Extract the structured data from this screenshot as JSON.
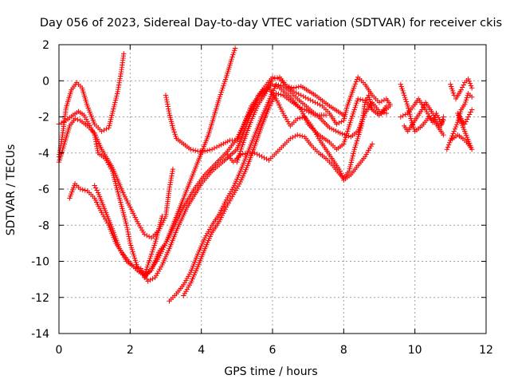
{
  "chart_data": {
    "type": "scatter",
    "title": "Day 056 of 2023, Sidereal Day-to-day VTEC variation (SDTVAR) for receiver ckis",
    "xlabel": "GPS time / hours",
    "ylabel": "SDTVAR / TECUs",
    "xlim": [
      0,
      12
    ],
    "ylim": [
      -14,
      2
    ],
    "xticks": [
      0,
      2,
      4,
      6,
      8,
      10,
      12
    ],
    "yticks": [
      -14,
      -12,
      -10,
      -8,
      -6,
      -4,
      -2,
      0,
      2
    ],
    "grid": true,
    "marker": "+",
    "color": "#ff0000",
    "series": [
      {
        "points": [
          [
            0,
            -4.5
          ],
          [
            0.15,
            -3.5
          ],
          [
            0.3,
            -2.5
          ],
          [
            0.45,
            -2.1
          ],
          [
            0.6,
            -2.2
          ],
          [
            0.8,
            -2.5
          ],
          [
            1.0,
            -2.9
          ],
          [
            1.2,
            -3.8
          ],
          [
            1.5,
            -4.8
          ],
          [
            1.8,
            -6.2
          ],
          [
            2.0,
            -7.0
          ],
          [
            2.2,
            -7.8
          ],
          [
            2.4,
            -8.5
          ],
          [
            2.6,
            -8.7
          ],
          [
            2.8,
            -8.3
          ],
          [
            3.0,
            -7.5
          ],
          [
            3.1,
            -6.0
          ],
          [
            3.2,
            -4.9
          ]
        ]
      },
      {
        "points": [
          [
            0,
            -4.2
          ],
          [
            0.1,
            -3.0
          ],
          [
            0.2,
            -1.5
          ],
          [
            0.35,
            -0.5
          ],
          [
            0.5,
            -0.1
          ],
          [
            0.65,
            -0.4
          ],
          [
            0.8,
            -1.4
          ],
          [
            1.0,
            -2.4
          ],
          [
            1.2,
            -2.8
          ],
          [
            1.4,
            -2.6
          ],
          [
            1.5,
            -1.8
          ],
          [
            1.65,
            -0.6
          ],
          [
            1.75,
            0.5
          ],
          [
            1.82,
            1.5
          ]
        ]
      },
      {
        "points": [
          [
            0.3,
            -6.5
          ],
          [
            0.45,
            -5.7
          ],
          [
            0.6,
            -6.0
          ],
          [
            0.8,
            -6.1
          ],
          [
            1.0,
            -6.5
          ],
          [
            1.2,
            -7.3
          ],
          [
            1.4,
            -8.0
          ],
          [
            1.6,
            -9.0
          ],
          [
            1.8,
            -9.6
          ],
          [
            2.0,
            -10.1
          ],
          [
            2.2,
            -10.5
          ],
          [
            2.4,
            -10.8
          ],
          [
            2.5,
            -10.2
          ],
          [
            2.7,
            -9.0
          ],
          [
            2.9,
            -7.5
          ]
        ]
      },
      {
        "points": [
          [
            0,
            -2.4
          ],
          [
            0.2,
            -2.2
          ],
          [
            0.4,
            -1.9
          ],
          [
            0.55,
            -1.7
          ],
          [
            0.7,
            -1.9
          ],
          [
            0.9,
            -2.6
          ],
          [
            1.0,
            -3.0
          ],
          [
            1.1,
            -4.0
          ],
          [
            1.3,
            -4.3
          ],
          [
            1.5,
            -5.0
          ],
          [
            1.7,
            -6.5
          ],
          [
            1.9,
            -8.0
          ],
          [
            2.0,
            -9.0
          ],
          [
            2.2,
            -10.3
          ],
          [
            2.4,
            -10.8
          ],
          [
            2.6,
            -10.5
          ],
          [
            2.8,
            -9.5
          ],
          [
            3.0,
            -9.0
          ],
          [
            3.2,
            -8.0
          ],
          [
            3.5,
            -6.5
          ],
          [
            3.7,
            -5.5
          ],
          [
            3.9,
            -4.5
          ],
          [
            4.2,
            -3.0
          ],
          [
            4.5,
            -1.0
          ],
          [
            4.7,
            0.2
          ],
          [
            4.85,
            1.2
          ],
          [
            4.95,
            1.8
          ]
        ]
      },
      {
        "points": [
          [
            1.0,
            -5.8
          ],
          [
            1.1,
            -6.2
          ],
          [
            1.3,
            -7.2
          ],
          [
            1.5,
            -8.2
          ],
          [
            1.7,
            -9.3
          ],
          [
            1.9,
            -10.0
          ],
          [
            2.1,
            -10.3
          ],
          [
            2.3,
            -10.4
          ],
          [
            2.5,
            -11.1
          ],
          [
            2.7,
            -10.9
          ],
          [
            2.9,
            -10.2
          ],
          [
            3.1,
            -9.3
          ],
          [
            3.3,
            -8.3
          ],
          [
            3.6,
            -7.0
          ],
          [
            4.0,
            -5.7
          ],
          [
            4.3,
            -5.0
          ],
          [
            4.6,
            -4.5
          ],
          [
            5.0,
            -3.8
          ],
          [
            5.3,
            -2.3
          ],
          [
            5.6,
            -0.8
          ],
          [
            5.8,
            -0.3
          ],
          [
            6.0,
            0.2
          ],
          [
            6.2,
            0.1
          ],
          [
            6.4,
            -0.3
          ],
          [
            6.6,
            -0.4
          ],
          [
            6.8,
            -0.3
          ],
          [
            7.2,
            -0.8
          ],
          [
            7.6,
            -1.4
          ],
          [
            8.0,
            -1.9
          ]
        ]
      },
      {
        "points": [
          [
            2.4,
            -10.9
          ],
          [
            2.6,
            -10.4
          ],
          [
            2.8,
            -9.8
          ],
          [
            3.0,
            -9.0
          ],
          [
            3.2,
            -8.2
          ],
          [
            3.5,
            -7.0
          ],
          [
            3.8,
            -6.0
          ],
          [
            4.1,
            -5.2
          ],
          [
            4.4,
            -4.6
          ],
          [
            4.7,
            -4.0
          ],
          [
            5.0,
            -3.2
          ],
          [
            5.2,
            -2.4
          ],
          [
            5.4,
            -1.4
          ],
          [
            5.7,
            -0.6
          ],
          [
            6.0,
            -0.2
          ],
          [
            6.2,
            -0.4
          ],
          [
            6.5,
            -0.9
          ],
          [
            6.8,
            -1.6
          ],
          [
            7.0,
            -2.4
          ],
          [
            7.3,
            -3.0
          ],
          [
            7.6,
            -3.4
          ],
          [
            7.8,
            -3.8
          ],
          [
            8.0,
            -3.5
          ],
          [
            8.2,
            -2.2
          ],
          [
            8.4,
            -1.0
          ],
          [
            8.6,
            -1.1
          ],
          [
            8.8,
            -1.6
          ],
          [
            9.0,
            -1.9
          ],
          [
            9.3,
            -1.4
          ]
        ]
      },
      {
        "points": [
          [
            3.1,
            -12.2
          ],
          [
            3.3,
            -11.8
          ],
          [
            3.5,
            -11.3
          ],
          [
            3.7,
            -10.6
          ],
          [
            3.9,
            -9.6
          ],
          [
            4.1,
            -8.7
          ],
          [
            4.3,
            -8.0
          ],
          [
            4.5,
            -7.4
          ],
          [
            4.7,
            -6.6
          ],
          [
            4.9,
            -5.9
          ],
          [
            5.1,
            -5.0
          ],
          [
            5.3,
            -4.0
          ],
          [
            5.5,
            -3.0
          ],
          [
            5.7,
            -2.0
          ],
          [
            5.9,
            -1.1
          ],
          [
            6.1,
            -0.2
          ],
          [
            6.3,
            -0.3
          ],
          [
            6.5,
            -0.6
          ],
          [
            6.7,
            -1.0
          ],
          [
            7.0,
            -1.5
          ],
          [
            7.3,
            -2.0
          ],
          [
            7.6,
            -2.6
          ],
          [
            7.9,
            -2.9
          ],
          [
            8.2,
            -3.1
          ],
          [
            8.4,
            -2.8
          ],
          [
            8.6,
            -1.8
          ],
          [
            8.8,
            -1.2
          ],
          [
            9.0,
            -1.7
          ],
          [
            9.2,
            -1.8
          ]
        ]
      },
      {
        "points": [
          [
            3.5,
            -11.9
          ],
          [
            3.7,
            -11.2
          ],
          [
            3.9,
            -10.3
          ],
          [
            4.1,
            -9.3
          ],
          [
            4.3,
            -8.4
          ],
          [
            4.5,
            -7.8
          ],
          [
            4.7,
            -7.0
          ],
          [
            4.9,
            -6.3
          ],
          [
            5.1,
            -5.6
          ],
          [
            5.3,
            -4.7
          ],
          [
            5.5,
            -3.6
          ],
          [
            5.7,
            -2.5
          ],
          [
            5.9,
            -1.5
          ],
          [
            6.1,
            -0.7
          ],
          [
            6.3,
            -0.8
          ],
          [
            6.5,
            -1.1
          ],
          [
            6.7,
            -1.4
          ],
          [
            6.9,
            -1.6
          ],
          [
            7.2,
            -1.9
          ],
          [
            7.5,
            -1.9
          ]
        ]
      },
      {
        "points": [
          [
            3.0,
            -0.8
          ],
          [
            3.1,
            -1.8
          ],
          [
            3.2,
            -2.6
          ],
          [
            3.3,
            -3.2
          ],
          [
            3.5,
            -3.5
          ],
          [
            3.7,
            -3.8
          ],
          [
            3.9,
            -3.9
          ],
          [
            4.1,
            -3.9
          ],
          [
            4.3,
            -3.8
          ],
          [
            4.5,
            -3.6
          ],
          [
            4.8,
            -3.3
          ],
          [
            5.0,
            -3.3
          ],
          [
            5.3,
            -2.0
          ],
          [
            5.6,
            -1.0
          ],
          [
            5.9,
            -0.4
          ],
          [
            6.1,
            -1.0
          ],
          [
            6.3,
            -1.8
          ],
          [
            6.5,
            -2.5
          ],
          [
            6.7,
            -2.1
          ],
          [
            6.9,
            -2.0
          ],
          [
            7.1,
            -2.5
          ],
          [
            7.3,
            -3.2
          ],
          [
            7.5,
            -3.8
          ],
          [
            7.7,
            -4.4
          ],
          [
            7.9,
            -5.0
          ],
          [
            8.0,
            -5.5
          ],
          [
            8.2,
            -5.2
          ],
          [
            8.4,
            -4.7
          ],
          [
            8.6,
            -4.2
          ],
          [
            8.8,
            -3.5
          ]
        ]
      },
      {
        "points": [
          [
            4.7,
            -4.0
          ],
          [
            4.9,
            -4.5
          ],
          [
            5.1,
            -4.1
          ],
          [
            5.3,
            -4.0
          ],
          [
            5.5,
            -4.0
          ],
          [
            5.7,
            -4.2
          ],
          [
            5.9,
            -4.4
          ],
          [
            6.1,
            -4.0
          ],
          [
            6.3,
            -3.6
          ],
          [
            6.5,
            -3.2
          ],
          [
            6.7,
            -3.0
          ],
          [
            6.9,
            -3.1
          ],
          [
            7.1,
            -3.6
          ],
          [
            7.3,
            -4.0
          ],
          [
            7.5,
            -4.3
          ],
          [
            7.7,
            -4.7
          ],
          [
            7.9,
            -5.2
          ],
          [
            8.0,
            -5.4
          ],
          [
            8.15,
            -5.0
          ],
          [
            8.3,
            -3.8
          ],
          [
            8.5,
            -2.5
          ],
          [
            8.6,
            -1.2
          ],
          [
            8.7,
            -0.8
          ],
          [
            8.8,
            -1.6
          ],
          [
            9.0,
            -1.9
          ],
          [
            9.2,
            -1.4
          ]
        ]
      },
      {
        "points": [
          [
            5.0,
            -4.5
          ],
          [
            5.2,
            -3.3
          ],
          [
            5.4,
            -2.2
          ],
          [
            5.6,
            -1.3
          ],
          [
            5.8,
            -0.7
          ],
          [
            6.0,
            0.1
          ],
          [
            6.2,
            0.2
          ],
          [
            6.4,
            -0.3
          ],
          [
            6.6,
            -0.6
          ],
          [
            6.8,
            -0.8
          ],
          [
            7.0,
            -1.0
          ],
          [
            7.2,
            -1.2
          ],
          [
            7.4,
            -1.4
          ],
          [
            7.6,
            -1.8
          ],
          [
            7.8,
            -2.4
          ],
          [
            8.0,
            -2.2
          ],
          [
            8.1,
            -1.4
          ],
          [
            8.3,
            -0.3
          ],
          [
            8.4,
            0.2
          ],
          [
            8.6,
            -0.2
          ],
          [
            8.8,
            -0.8
          ],
          [
            9.0,
            -1.2
          ],
          [
            9.2,
            -1.0
          ],
          [
            9.3,
            -1.3
          ]
        ]
      },
      {
        "points": [
          [
            9.6,
            -0.2
          ],
          [
            9.7,
            -0.8
          ],
          [
            9.8,
            -1.4
          ],
          [
            9.9,
            -2.2
          ],
          [
            10.0,
            -2.8
          ],
          [
            10.2,
            -2.5
          ],
          [
            10.4,
            -2.0
          ],
          [
            10.6,
            -2.4
          ],
          [
            10.8,
            -3.0
          ],
          [
            9.7,
            -2.5
          ],
          [
            9.8,
            -2.8
          ],
          [
            10.0,
            -2.2
          ],
          [
            10.2,
            -1.6
          ],
          [
            10.3,
            -1.2
          ],
          [
            10.5,
            -1.8
          ],
          [
            10.7,
            -2.6
          ],
          [
            10.8,
            -2.2
          ]
        ]
      },
      {
        "points": [
          [
            9.6,
            -2.0
          ],
          [
            9.8,
            -1.8
          ],
          [
            10.0,
            -1.3
          ],
          [
            10.1,
            -1.0
          ],
          [
            10.3,
            -1.6
          ],
          [
            10.5,
            -2.3
          ],
          [
            10.6,
            -1.8
          ],
          [
            10.75,
            -2.4
          ],
          [
            10.8,
            -2.0
          ]
        ]
      },
      {
        "points": [
          [
            11.0,
            -0.2
          ],
          [
            11.1,
            -0.8
          ],
          [
            11.15,
            -1.0
          ],
          [
            11.3,
            -0.5
          ],
          [
            11.4,
            -0.1
          ],
          [
            11.5,
            0.1
          ],
          [
            11.6,
            -0.4
          ],
          [
            11.0,
            -3.3
          ],
          [
            11.1,
            -2.8
          ],
          [
            11.2,
            -2.3
          ],
          [
            11.3,
            -1.6
          ],
          [
            11.4,
            -1.3
          ],
          [
            11.5,
            -0.7
          ],
          [
            11.6,
            -0.9
          ]
        ]
      },
      {
        "points": [
          [
            10.9,
            -3.8
          ],
          [
            11.0,
            -3.3
          ],
          [
            11.2,
            -3.0
          ],
          [
            11.35,
            -3.2
          ],
          [
            11.5,
            -3.5
          ],
          [
            11.6,
            -3.8
          ],
          [
            11.2,
            -1.8
          ],
          [
            11.3,
            -2.1
          ],
          [
            11.4,
            -2.4
          ],
          [
            11.5,
            -2.0
          ],
          [
            11.6,
            -1.6
          ]
        ]
      }
    ]
  }
}
